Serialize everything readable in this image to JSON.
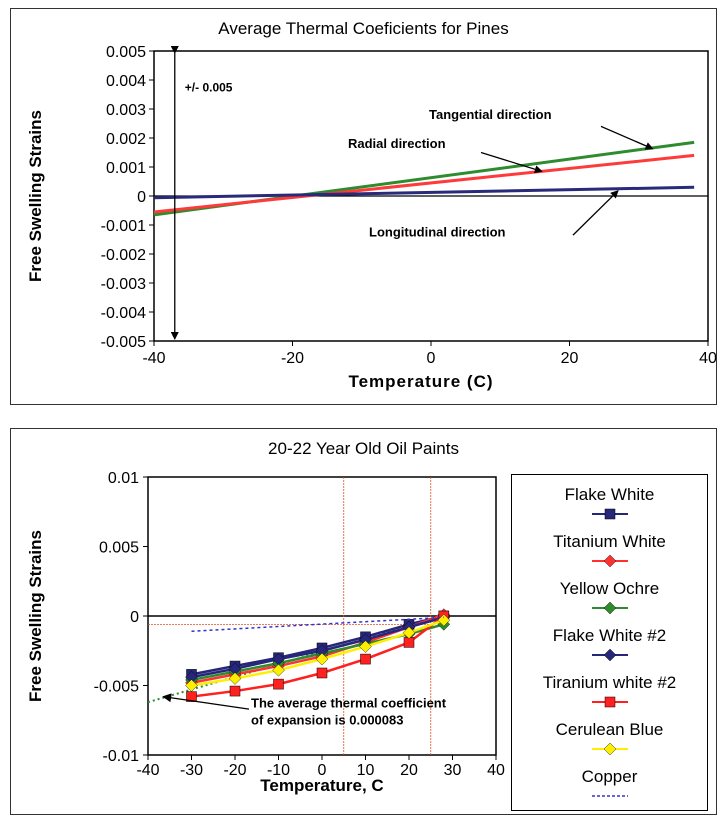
{
  "chart_data": [
    {
      "type": "line",
      "title": "Average Thermal Coeficients for Pines",
      "xlabel": "Temperature (C)",
      "ylabel": "Free Swelling Strains",
      "xlim": [
        -40,
        40
      ],
      "ylim": [
        -0.005,
        0.005
      ],
      "x_ticks": [
        "-40",
        "-20",
        "0",
        "20",
        "40"
      ],
      "y_ticks": [
        "0.005",
        "0.004",
        "0.003",
        "0.002",
        "0.001",
        "0",
        "-0.001",
        "-0.002",
        "-0.003",
        "-0.004",
        "-0.005"
      ],
      "series": [
        {
          "name": "Tangential direction",
          "color": "#2e8b2e",
          "x": [
            -40,
            38
          ],
          "y": [
            -0.00065,
            0.00185
          ]
        },
        {
          "name": "Radial direction",
          "color": "#ff3a3a",
          "x": [
            -40,
            38
          ],
          "y": [
            -0.00055,
            0.0014
          ]
        },
        {
          "name": "Longitudinal direction",
          "color": "#2a2a7a",
          "x": [
            -40,
            38
          ],
          "y": [
            -6e-05,
            0.0003
          ]
        }
      ],
      "annotations": {
        "range": "+/- 0.005",
        "tangential": "Tangential direction",
        "radial": "Radial direction",
        "longitudinal": "Longitudinal direction"
      }
    },
    {
      "type": "line",
      "title": "20-22 Year Old Oil Paints",
      "xlabel": "Temperature, C",
      "ylabel": "Free Swelling Strains",
      "xlim": [
        -40,
        40
      ],
      "ylim": [
        -0.01,
        0.01
      ],
      "x_ticks": [
        "-40",
        "-30",
        "-20",
        "-10",
        "0",
        "10",
        "20",
        "30",
        "40"
      ],
      "y_ticks": [
        "0.01",
        "0.005",
        "0",
        "-0.005",
        "-0.01"
      ],
      "legend_position": "right",
      "x": [
        -30,
        -20,
        -10,
        0,
        10,
        20,
        28
      ],
      "series": [
        {
          "name": "Flake White",
          "color": "#26267a",
          "marker": "square",
          "y": [
            -0.0042,
            -0.0036,
            -0.003,
            -0.0023,
            -0.0015,
            -0.0006,
            0.0
          ]
        },
        {
          "name": "Titanium White",
          "color": "#ff3030",
          "marker": "diamond",
          "y": [
            -0.0048,
            -0.0042,
            -0.0036,
            -0.0029,
            -0.0019,
            -0.0008,
            0.0001
          ]
        },
        {
          "name": "Yellow Ochre",
          "color": "#2e8b2e",
          "marker": "diamond",
          "y": [
            -0.0046,
            -0.004,
            -0.0034,
            -0.0027,
            -0.002,
            -0.0013,
            -0.0006
          ]
        },
        {
          "name": "Flake White #2",
          "color": "#26267a",
          "marker": "diamond",
          "y": [
            -0.0044,
            -0.0038,
            -0.0031,
            -0.0025,
            -0.0017,
            -0.0008,
            -0.0001
          ]
        },
        {
          "name": "Tiranium white #2",
          "color": "#ff2020",
          "marker": "square",
          "y": [
            -0.0058,
            -0.0054,
            -0.0049,
            -0.0041,
            -0.0031,
            -0.0019,
            0.0
          ]
        },
        {
          "name": "Cerulean Blue",
          "color": "#ffee00",
          "marker": "diamond",
          "y": [
            -0.005,
            -0.0045,
            -0.0039,
            -0.0031,
            -0.0022,
            -0.0012,
            -0.0003
          ]
        },
        {
          "name": "Copper",
          "color": "#3333cc",
          "marker": "none",
          "dashed": true,
          "x": [
            -30,
            28
          ],
          "y": [
            -0.0011,
            -0.0001
          ]
        }
      ],
      "extra_lines": {
        "average_fit": {
          "color": "#2e8b2e",
          "x": [
            -40,
            28
          ],
          "y": [
            -0.0062,
            0.0
          ]
        },
        "vertical_refs": [
          5,
          25
        ],
        "horizontal_ref": -0.0006
      },
      "annotations": {
        "average_line1": "The average thermal coefficient",
        "average_line2": "of expansion is 0.000083"
      }
    }
  ]
}
